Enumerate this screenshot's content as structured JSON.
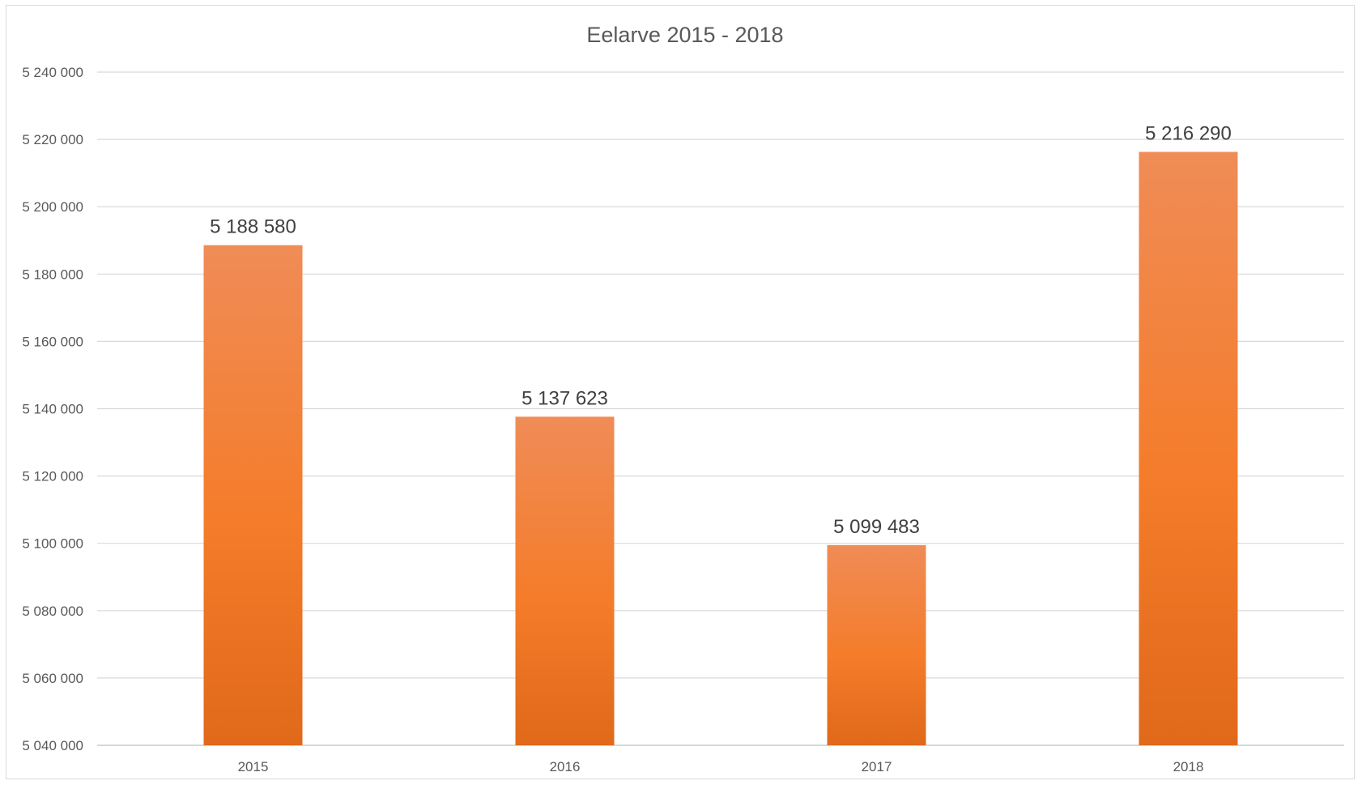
{
  "chart_data": {
    "type": "bar",
    "title": "Eelarve 2015 - 2018",
    "categories": [
      "2015",
      "2016",
      "2017",
      "2018"
    ],
    "values": [
      5188580,
      5137623,
      5099483,
      5216290
    ],
    "value_labels": [
      "5 188 580",
      "5 137 623",
      "5 099 483",
      "5 216 290"
    ],
    "xlabel": "",
    "ylabel": "",
    "ylim": [
      5040000,
      5240000
    ],
    "yticks": [
      5040000,
      5060000,
      5080000,
      5100000,
      5120000,
      5140000,
      5160000,
      5180000,
      5200000,
      5220000,
      5240000
    ],
    "ytick_labels": [
      "5 040 000",
      "5 060 000",
      "5 080 000",
      "5 100 000",
      "5 120 000",
      "5 140 000",
      "5 160 000",
      "5 180 000",
      "5 200 000",
      "5 220 000",
      "5 240 000"
    ],
    "grid": true,
    "legend": "none",
    "colors": {
      "bar_top": "#f08c57",
      "bar_mid": "#f47c2a",
      "bar_bottom": "#e0691a",
      "gridline": "#d9d9d9",
      "axis": "#bfbfbf"
    }
  }
}
